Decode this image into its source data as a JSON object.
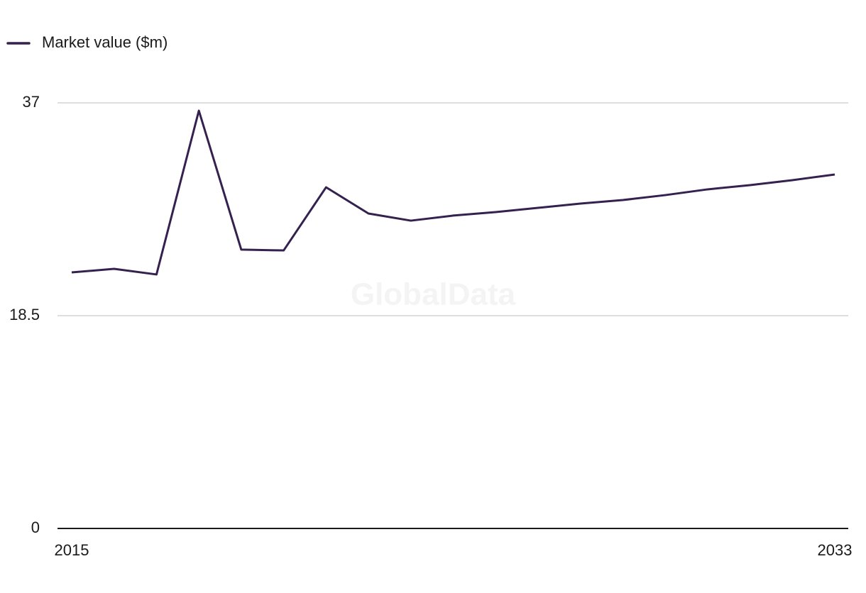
{
  "chart_data": {
    "type": "line",
    "watermark": "GlobalData",
    "x": [
      2015,
      2016,
      2017,
      2018,
      2019,
      2020,
      2021,
      2022,
      2023,
      2024,
      2025,
      2026,
      2027,
      2028,
      2029,
      2030,
      2031,
      2032,
      2033
    ],
    "xlim": [
      2015,
      2033
    ],
    "xticks": [
      2015,
      2033
    ],
    "ylim": [
      0,
      37
    ],
    "yticks": [
      0,
      18.5,
      37
    ],
    "grid": true,
    "legend": "top-left",
    "series": [
      {
        "name": "Market value ($m)",
        "color": "#35214f",
        "values": [
          22.26,
          22.57,
          22.08,
          36.32,
          24.24,
          24.17,
          29.66,
          27.38,
          26.76,
          27.2,
          27.5,
          27.87,
          28.24,
          28.55,
          28.98,
          29.48,
          29.85,
          30.28,
          30.77
        ]
      }
    ]
  }
}
